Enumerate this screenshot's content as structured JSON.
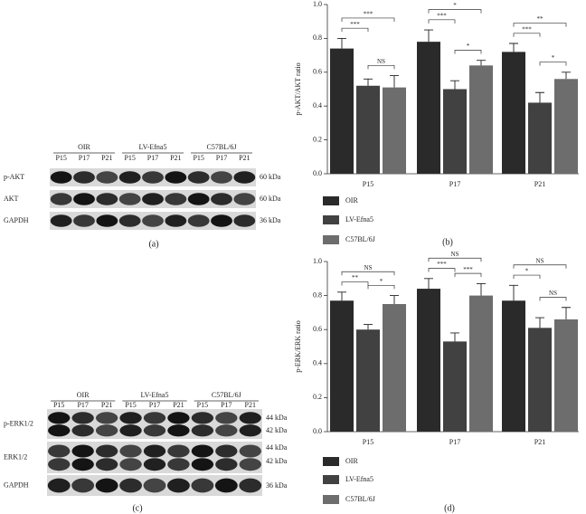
{
  "panel_labels": [
    "(a)",
    "(b)",
    "(c)",
    "(d)"
  ],
  "blots": [
    {
      "groups": [
        "OIR",
        "LV-Efna5",
        "C57BL/6J"
      ],
      "lanes": [
        "P15",
        "P17",
        "P21",
        "P15",
        "P17",
        "P21",
        "P15",
        "P17",
        "P21"
      ],
      "rows": [
        {
          "label": "p-AKT",
          "sizes": [
            "60 kDa"
          ]
        },
        {
          "label": "AKT",
          "sizes": [
            "60 kDa"
          ]
        },
        {
          "label": "GAPDH",
          "sizes": [
            "36 kDa"
          ]
        }
      ]
    },
    {
      "groups": [
        "OIR",
        "LV-Efna5",
        "C57BL/6J"
      ],
      "lanes": [
        "P15",
        "P17",
        "P21",
        "P15",
        "P17",
        "P21",
        "P15",
        "P17",
        "P21"
      ],
      "rows": [
        {
          "label": "p-ERK1/2",
          "sizes": [
            "44 kDa",
            "42 kDa"
          ]
        },
        {
          "label": "ERK1/2",
          "sizes": [
            "44 kDa",
            "42 kDa"
          ]
        },
        {
          "label": "GAPDH",
          "sizes": [
            "36 kDa"
          ]
        }
      ]
    }
  ],
  "chart_data": [
    {
      "type": "bar",
      "y_label": "p-AKT/AKT ratio",
      "categories": [
        "P15",
        "P17",
        "P21"
      ],
      "series": [
        {
          "name": "OIR",
          "color": "#2a2a2a",
          "values": [
            0.74,
            0.78,
            0.72
          ],
          "errors": [
            0.06,
            0.07,
            0.05
          ]
        },
        {
          "name": "LV-Efna5",
          "color": "#414141",
          "values": [
            0.52,
            0.5,
            0.42
          ],
          "errors": [
            0.04,
            0.05,
            0.06
          ]
        },
        {
          "name": "C57BL/6J",
          "color": "#6d6d6d",
          "values": [
            0.51,
            0.64,
            0.56
          ],
          "errors": [
            0.07,
            0.03,
            0.04
          ]
        }
      ],
      "annotations": [
        [
          "***",
          "***",
          "NS"
        ],
        [
          "***",
          "*",
          "*"
        ],
        [
          "***",
          "**",
          "*"
        ]
      ],
      "ylim": [
        0,
        1
      ],
      "yticks": [
        {
          "value": 0,
          "label": "0.0"
        },
        0.2,
        0.4,
        0.6,
        0.8,
        {
          "value": 1,
          "label": "1.0"
        }
      ],
      "legend": "bottom-left"
    },
    {
      "type": "bar",
      "y_label": "p-ERK/ERK ratio",
      "categories": [
        "P15",
        "P17",
        "P21"
      ],
      "series": [
        {
          "name": "OIR",
          "color": "#2a2a2a",
          "values": [
            0.77,
            0.84,
            0.77
          ],
          "errors": [
            0.05,
            0.06,
            0.09
          ]
        },
        {
          "name": "LV-Efna5",
          "color": "#414141",
          "values": [
            0.6,
            0.53,
            0.61
          ],
          "errors": [
            0.03,
            0.05,
            0.06
          ]
        },
        {
          "name": "C57BL/6J",
          "color": "#6d6d6d",
          "values": [
            0.75,
            0.8,
            0.66
          ],
          "errors": [
            0.05,
            0.07,
            0.07
          ]
        }
      ],
      "annotations": [
        [
          "**",
          "NS",
          "*"
        ],
        [
          "***",
          "NS",
          "***"
        ],
        [
          "*",
          "NS",
          "NS"
        ]
      ],
      "ylim": [
        0,
        1
      ],
      "yticks": [
        {
          "value": 0,
          "label": "0.0"
        },
        0.2,
        0.4,
        0.6,
        0.8,
        {
          "value": 1,
          "label": "1.0"
        }
      ],
      "legend": "bottom-left"
    }
  ]
}
